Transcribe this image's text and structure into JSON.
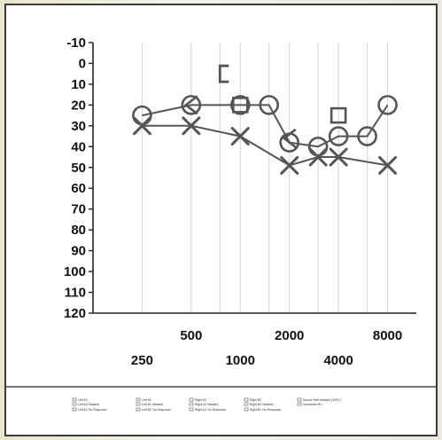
{
  "chart_data": {
    "type": "scatter",
    "title": "",
    "xlabel": "",
    "ylabel": "",
    "x_scale": "log",
    "x_ticks_top_row": [
      "500",
      "2000",
      "8000"
    ],
    "x_ticks_bottom_row": [
      "250",
      "1000",
      "4000"
    ],
    "y_ticks": [
      "-10",
      "0",
      "10",
      "20",
      "30",
      "40",
      "50",
      "60",
      "70",
      "80",
      "90",
      "100",
      "110",
      "120"
    ],
    "ylim": [
      120,
      -10
    ],
    "y_inverted": true,
    "grid": "vertical",
    "series": [
      {
        "name": "Right AC",
        "marker": "circle",
        "connected": true,
        "points": [
          [
            250,
            25
          ],
          [
            500,
            20
          ],
          [
            1000,
            20
          ],
          [
            1500,
            20
          ],
          [
            2000,
            38
          ],
          [
            3000,
            40
          ],
          [
            4000,
            35
          ],
          [
            6000,
            35
          ],
          [
            8000,
            20
          ]
        ]
      },
      {
        "name": "Left AC",
        "marker": "x",
        "connected": true,
        "points": [
          [
            250,
            30
          ],
          [
            500,
            30
          ],
          [
            1000,
            35
          ],
          [
            2000,
            49
          ],
          [
            3000,
            45
          ],
          [
            4000,
            45
          ],
          [
            8000,
            49
          ]
        ]
      },
      {
        "name": "Right BC",
        "marker": "<",
        "connected": false,
        "points": [
          [
            500,
            20
          ],
          [
            2000,
            36
          ]
        ]
      },
      {
        "name": "Right BC Masked",
        "marker": "[",
        "connected": false,
        "points": [
          [
            750,
            5
          ]
        ]
      },
      {
        "name": "Sound Field Masked (SSPL)",
        "marker": "square",
        "connected": false,
        "points": [
          [
            1000,
            20
          ],
          [
            4000,
            25
          ]
        ]
      }
    ],
    "legend_position": "bottom",
    "legend_row1": [
      "Left AC",
      "Left BC",
      "Right AC",
      "Right BC",
      "Sound Field Masked (SSPL)"
    ],
    "legend_row1b": [
      "Left AC Masked",
      "Left BC Masked",
      "Right AC Masked",
      "Right BC Masked",
      "Unmasked BC"
    ],
    "legend_row2": [
      "Left AC No Response",
      "Left BC No Response",
      "Right AC No Response",
      "Right BC No Response"
    ]
  },
  "colors": {
    "marker": "#555555",
    "axis": "#222222",
    "grid": "#d4d4d4",
    "frame": "#3a3a3a"
  }
}
